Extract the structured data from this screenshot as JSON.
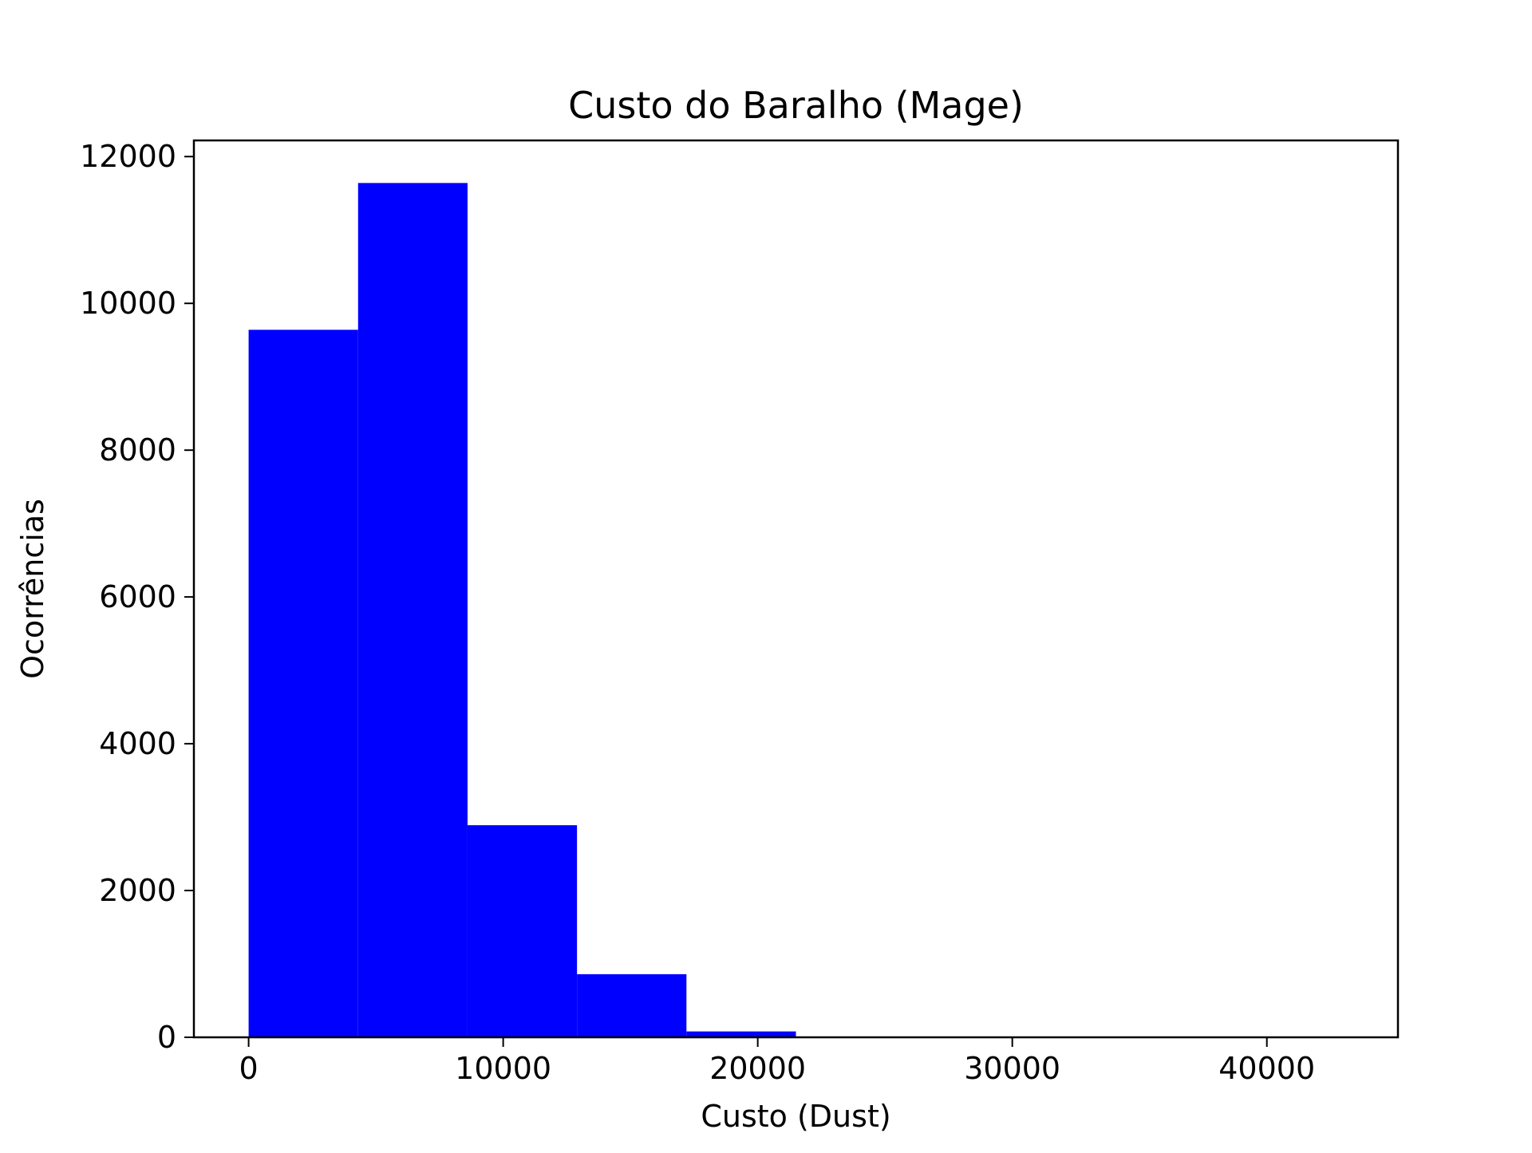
{
  "chart_data": {
    "type": "bar",
    "subtype": "histogram",
    "title": "Custo do Baralho (Mage)",
    "xlabel": "Custo (Dust)",
    "ylabel": "Ocorrências",
    "bin_edges": [
      0,
      4300,
      8600,
      12900,
      17200,
      21500,
      25800,
      30100,
      34400,
      38700,
      43000
    ],
    "values": [
      9640,
      11640,
      2890,
      860,
      80,
      8,
      2,
      1,
      0,
      1
    ],
    "xlim": [
      -2150,
      45150
    ],
    "ylim": [
      0,
      12220
    ],
    "xticks": [
      0,
      10000,
      20000,
      30000,
      40000
    ],
    "xtick_labels": [
      "0",
      "10000",
      "20000",
      "30000",
      "40000"
    ],
    "yticks": [
      0,
      2000,
      4000,
      6000,
      8000,
      10000,
      12000
    ],
    "ytick_labels": [
      "0",
      "2000",
      "4000",
      "6000",
      "8000",
      "10000",
      "12000"
    ],
    "bar_color": "#0000ff",
    "grid": false,
    "legend": false
  }
}
